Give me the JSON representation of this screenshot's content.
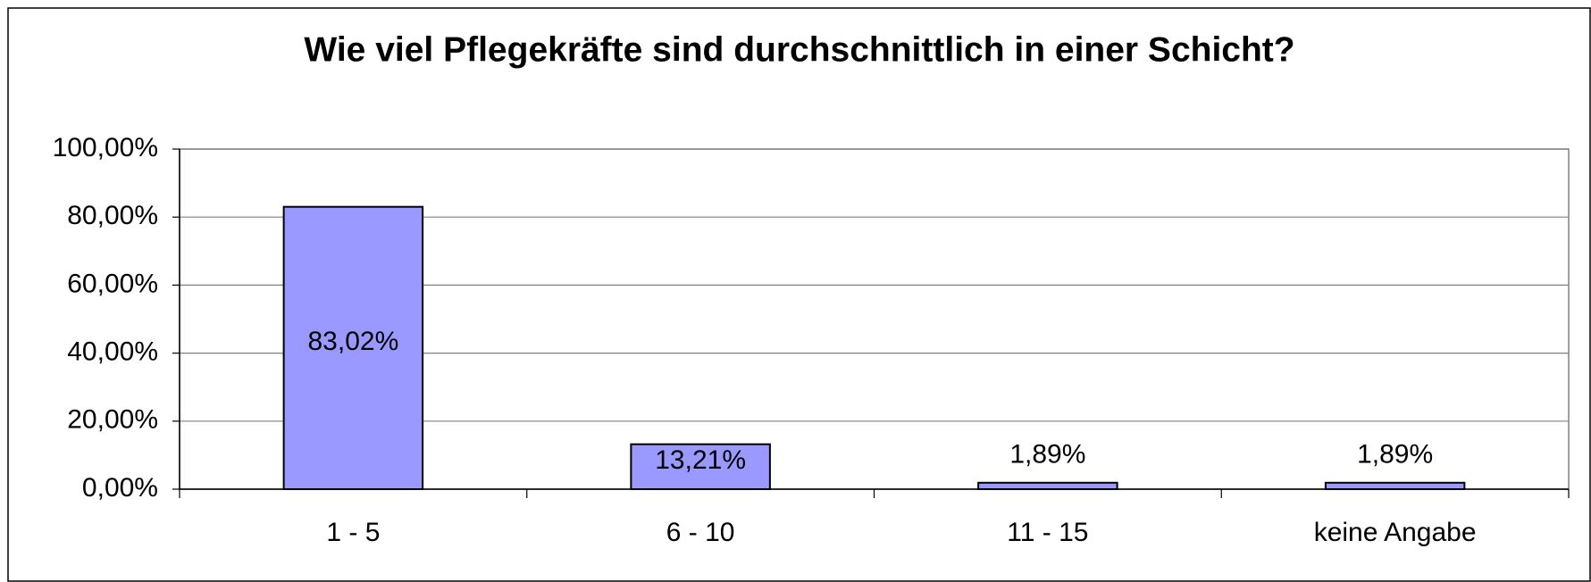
{
  "chart_data": {
    "type": "bar",
    "title": "Wie viel Pflegekräfte sind durchschnittlich in einer Schicht?",
    "categories": [
      "1 - 5",
      "6 - 10",
      "11 - 15",
      "keine Angabe"
    ],
    "values": [
      83.02,
      13.21,
      1.89,
      1.89
    ],
    "value_labels": [
      "83,02%",
      "13,21%",
      "1,89%",
      "1,89%"
    ],
    "color": "#9999ff",
    "ylim": [
      0,
      100
    ],
    "yticks": [
      {
        "value": 0,
        "label": "0,00%"
      },
      {
        "value": 20,
        "label": "20,00%"
      },
      {
        "value": 40,
        "label": "40,00%"
      },
      {
        "value": 60,
        "label": "60,00%"
      },
      {
        "value": 80,
        "label": "80,00%"
      },
      {
        "value": 100,
        "label": "100,00%"
      }
    ],
    "grid": true
  }
}
